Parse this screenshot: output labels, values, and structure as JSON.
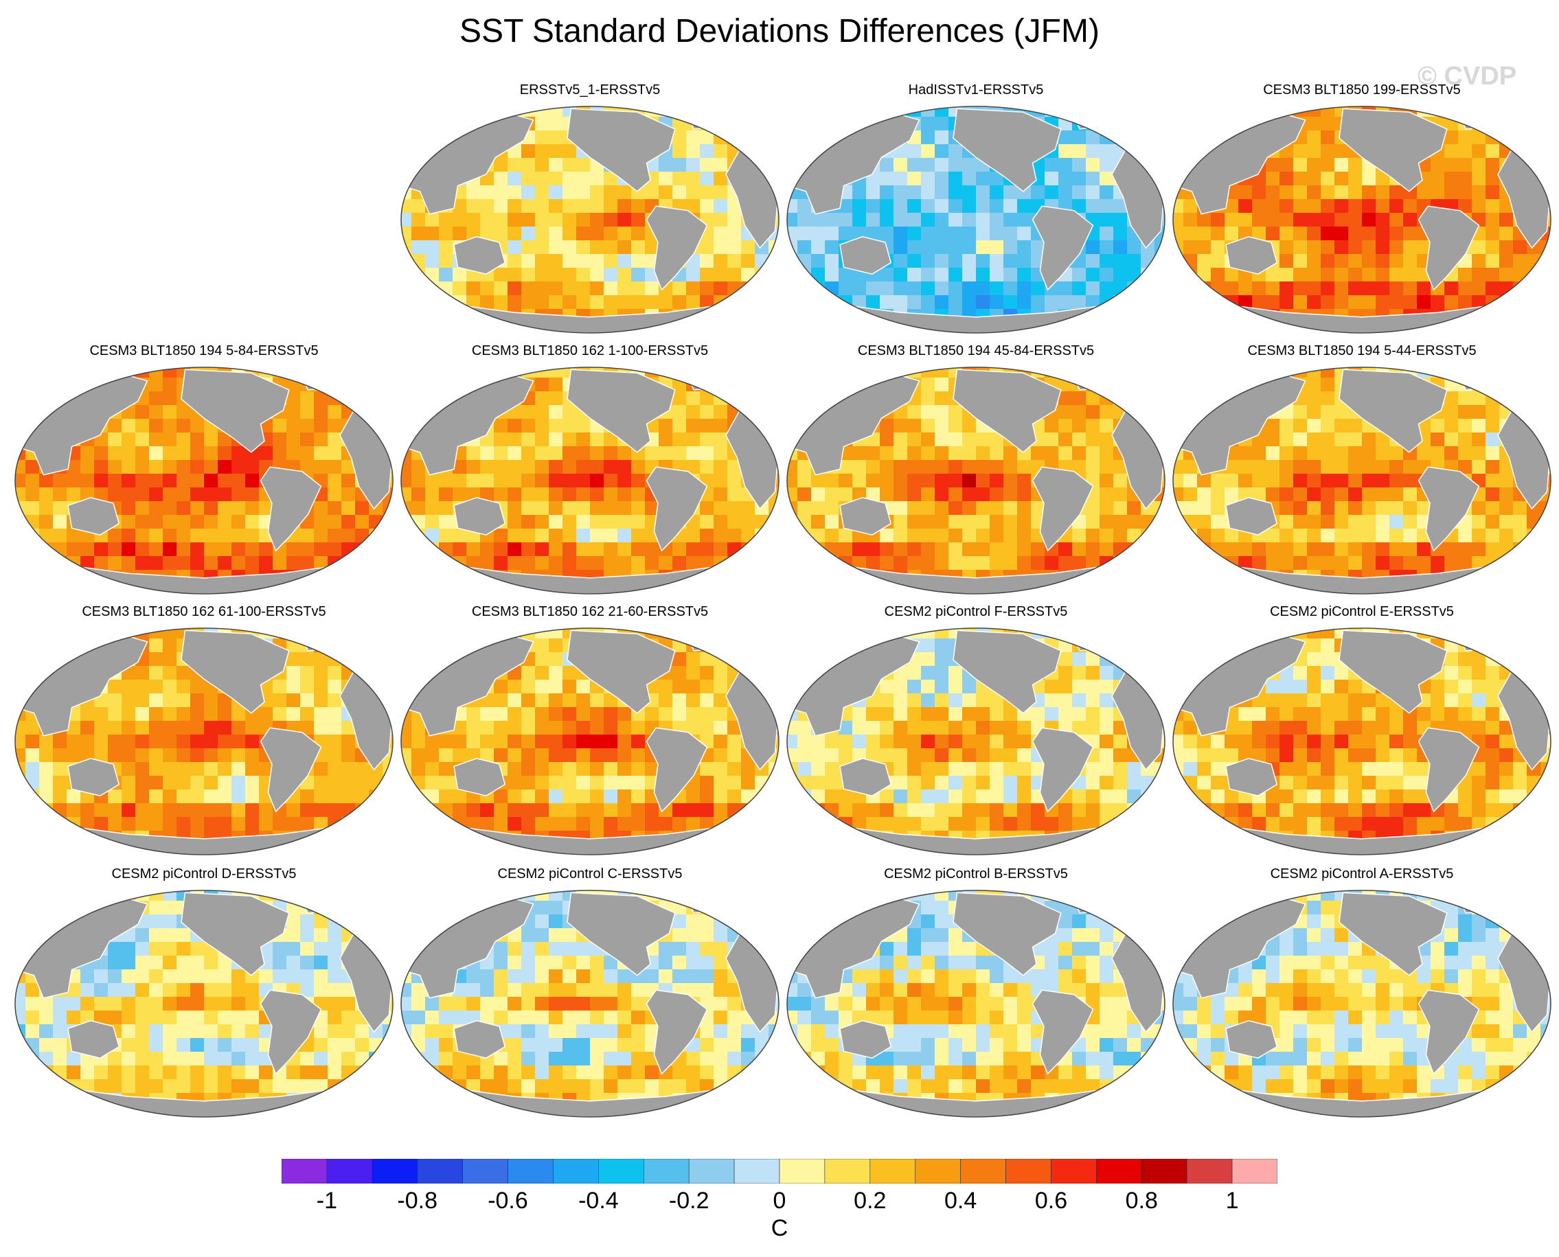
{
  "title": "SST Standard Deviations Differences (JFM)",
  "watermark": "© CVDP",
  "units": "C",
  "colors": {
    "land": "#a0a0a0",
    "land_outline": "#ffffff",
    "globe_outline": "#444444",
    "scale": [
      "#8a2be2",
      "#4b1ff0",
      "#0a1ef5",
      "#2846e0",
      "#3a6ee6",
      "#2a8af0",
      "#1ea8f2",
      "#0ec2f0",
      "#55c0ee",
      "#8fcdee",
      "#bfe2f6",
      "#fff7a0",
      "#fde050",
      "#fbc020",
      "#f89c10",
      "#f77c10",
      "#f55a10",
      "#f42a10",
      "#e60000",
      "#c00000",
      "#d84040",
      "#ffaaaa"
    ]
  },
  "colorbar": {
    "levels": [
      "-1",
      "-0.8",
      "-0.6",
      "-0.4",
      "-0.2",
      "0",
      "0.2",
      "0.4",
      "0.6",
      "0.8",
      "1"
    ]
  },
  "panels": [
    {
      "title": "ERSSTv5_1-ERSSTv5",
      "col": 1,
      "row": 0,
      "pattern": "mixed_warm"
    },
    {
      "title": "HadISSTv1-ERSSTv5",
      "col": 2,
      "row": 0,
      "pattern": "cool"
    },
    {
      "title": "CESM3 BLT1850 199-ERSSTv5",
      "col": 3,
      "row": 0,
      "pattern": "warm_strong"
    },
    {
      "title": "CESM3 BLT1850 194 5-84-ERSSTv5",
      "col": 0,
      "row": 1,
      "pattern": "warm_strong"
    },
    {
      "title": "CESM3 BLT1850 162 1-100-ERSSTv5",
      "col": 1,
      "row": 1,
      "pattern": "warm"
    },
    {
      "title": "CESM3 BLT1850 194 45-84-ERSSTv5",
      "col": 2,
      "row": 1,
      "pattern": "warm"
    },
    {
      "title": "CESM3 BLT1850 194 5-44-ERSSTv5",
      "col": 3,
      "row": 1,
      "pattern": "warm"
    },
    {
      "title": "CESM3 BLT1850 162 61-100-ERSSTv5",
      "col": 0,
      "row": 2,
      "pattern": "warm"
    },
    {
      "title": "CESM3 BLT1850 162 21-60-ERSSTv5",
      "col": 1,
      "row": 2,
      "pattern": "warm"
    },
    {
      "title": "CESM2 piControl F-ERSSTv5",
      "col": 2,
      "row": 2,
      "pattern": "mixed_warm"
    },
    {
      "title": "CESM2 piControl E-ERSSTv5",
      "col": 3,
      "row": 2,
      "pattern": "warm"
    },
    {
      "title": "CESM2 piControl D-ERSSTv5",
      "col": 0,
      "row": 3,
      "pattern": "mixed"
    },
    {
      "title": "CESM2 piControl C-ERSSTv5",
      "col": 1,
      "row": 3,
      "pattern": "mixed"
    },
    {
      "title": "CESM2 piControl B-ERSSTv5",
      "col": 2,
      "row": 3,
      "pattern": "mixed"
    },
    {
      "title": "CESM2 piControl A-ERSSTv5",
      "col": 3,
      "row": 3,
      "pattern": "mixed"
    }
  ]
}
